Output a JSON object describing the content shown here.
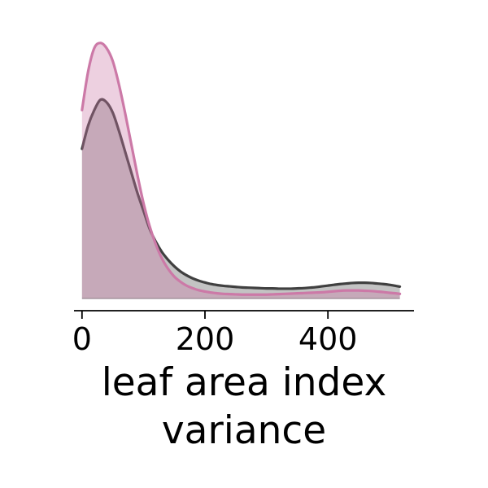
{
  "chart_data": {
    "type": "area",
    "title": "",
    "xlabel": [
      "leaf area index",
      "variance"
    ],
    "ylabel": "",
    "xlim": [
      -13,
      540
    ],
    "ylim": [
      0,
      0.0098
    ],
    "xticks": [
      0,
      200,
      400
    ],
    "xtick_labels": [
      "0",
      "200",
      "400"
    ],
    "grid": false,
    "legend": "none",
    "series": [
      {
        "color": "#404040",
        "fill": "#b9b9b9",
        "x": [
          0,
          10,
          20,
          30,
          40,
          50,
          60,
          70,
          80,
          90,
          100,
          110,
          120,
          130,
          140,
          150,
          160,
          170,
          180,
          190,
          200,
          210,
          220,
          230,
          240,
          250,
          260,
          270,
          280,
          290,
          300,
          310,
          320,
          330,
          340,
          350,
          360,
          370,
          380,
          390,
          400,
          410,
          420,
          430,
          440,
          450,
          460,
          470,
          480,
          490,
          500,
          510,
          517
        ],
        "y": [
          0.0058,
          0.0067,
          0.0073,
          0.0077,
          0.0076,
          0.0072,
          0.0065,
          0.0057,
          0.0049,
          0.0041,
          0.0034,
          0.0027,
          0.0022,
          0.0018,
          0.0015,
          0.00125,
          0.00105,
          0.0009,
          0.00078,
          0.00069,
          0.00062,
          0.00056,
          0.00052,
          0.00049,
          0.00047,
          0.00045,
          0.00043,
          0.00042,
          0.00041,
          0.0004,
          0.00039,
          0.00039,
          0.00038,
          0.00038,
          0.00038,
          0.00039,
          0.0004,
          0.00042,
          0.00044,
          0.00047,
          0.0005,
          0.00053,
          0.00056,
          0.00058,
          0.0006,
          0.00061,
          0.00061,
          0.0006,
          0.00058,
          0.00056,
          0.00053,
          0.00049,
          0.00046
        ]
      },
      {
        "color": "#cc79a7",
        "fill": "#cc79a7",
        "x": [
          0,
          10,
          20,
          30,
          40,
          50,
          60,
          70,
          80,
          90,
          100,
          110,
          120,
          130,
          140,
          150,
          160,
          170,
          180,
          190,
          200,
          210,
          220,
          230,
          240,
          250,
          260,
          270,
          280,
          290,
          300,
          310,
          320,
          330,
          340,
          350,
          360,
          370,
          380,
          390,
          400,
          410,
          420,
          430,
          440,
          450,
          460,
          470,
          480,
          490,
          500,
          510,
          517
        ],
        "y": [
          0.0073,
          0.0088,
          0.0097,
          0.0099,
          0.0097,
          0.0092,
          0.0083,
          0.0072,
          0.006,
          0.0048,
          0.0037,
          0.0028,
          0.0021,
          0.00155,
          0.00115,
          0.00085,
          0.00065,
          0.0005,
          0.0004,
          0.00032,
          0.00027,
          0.00023,
          0.0002,
          0.00018,
          0.00017,
          0.00016,
          0.00015,
          0.00015,
          0.00015,
          0.00015,
          0.00015,
          0.00016,
          0.00017,
          0.00018,
          0.00019,
          0.0002,
          0.00021,
          0.00022,
          0.00023,
          0.00024,
          0.00026,
          0.00028,
          0.0003,
          0.00031,
          0.00031,
          0.00031,
          0.0003,
          0.00029,
          0.00027,
          0.00025,
          0.00022,
          0.0002,
          0.00018
        ]
      }
    ]
  }
}
